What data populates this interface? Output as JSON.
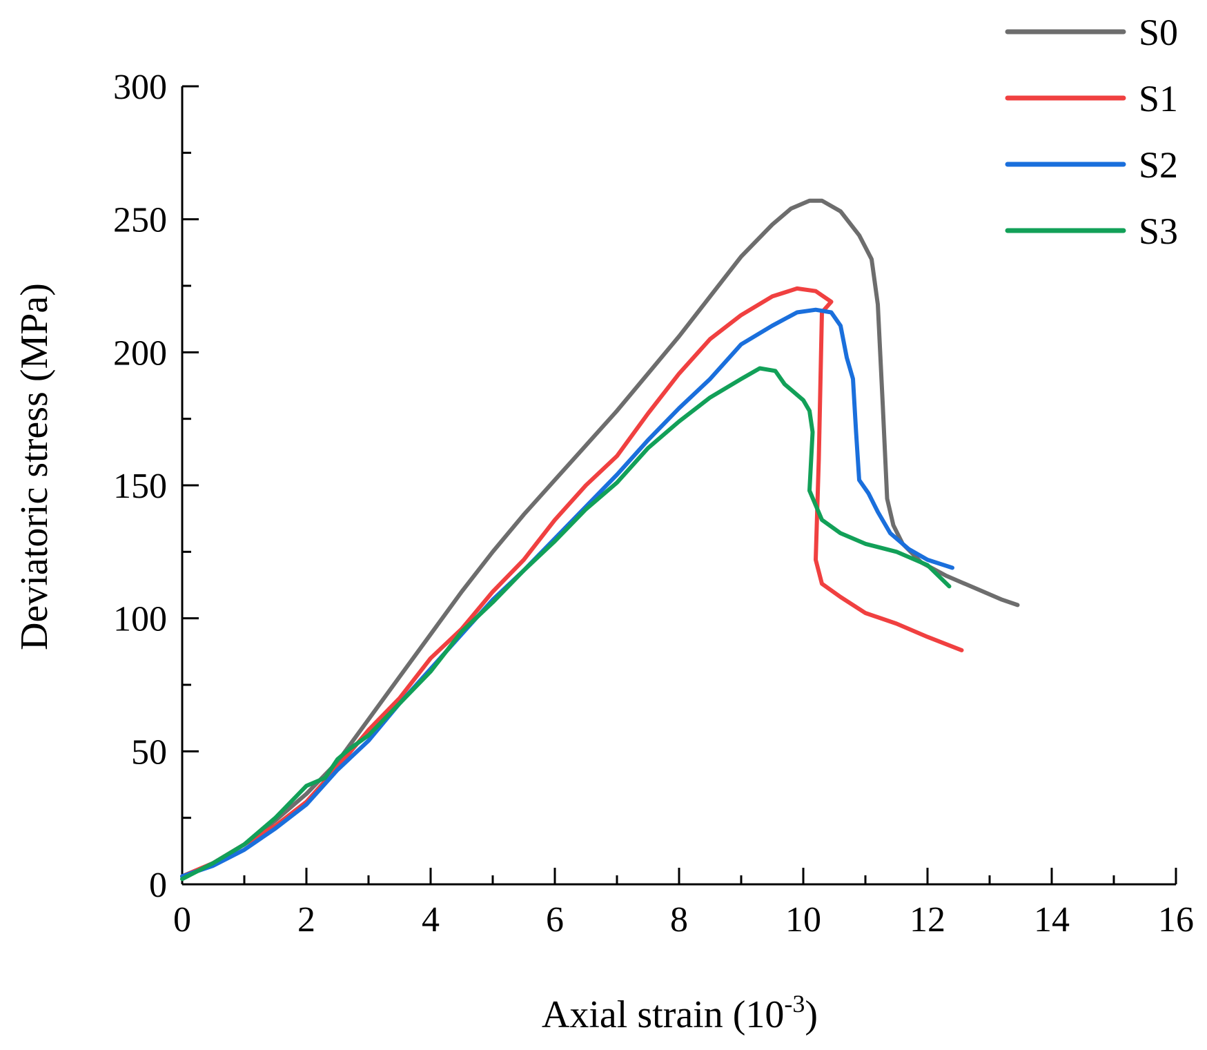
{
  "chart_data": {
    "type": "line",
    "title": "",
    "xlabel": "Axial strain (10",
    "xlabel_sup": "-3",
    "xlabel_suffix": ")",
    "ylabel": "Deviatoric stress (MPa)",
    "xlim": [
      0,
      16
    ],
    "ylim": [
      0,
      300
    ],
    "x_ticks": [
      0,
      2,
      4,
      6,
      8,
      10,
      12,
      14,
      16
    ],
    "y_ticks": [
      0,
      50,
      100,
      150,
      200,
      250,
      300
    ],
    "legend_position": "top-right",
    "series": [
      {
        "name": "S0",
        "color": "#6d6d6d",
        "points": [
          [
            0,
            3
          ],
          [
            0.5,
            8
          ],
          [
            1,
            15
          ],
          [
            1.5,
            24
          ],
          [
            2,
            34
          ],
          [
            2.5,
            46
          ],
          [
            3,
            62
          ],
          [
            3.5,
            78
          ],
          [
            4,
            94
          ],
          [
            4.5,
            110
          ],
          [
            5,
            125
          ],
          [
            5.5,
            139
          ],
          [
            6,
            152
          ],
          [
            6.5,
            165
          ],
          [
            7,
            178
          ],
          [
            7.5,
            192
          ],
          [
            8,
            206
          ],
          [
            8.5,
            221
          ],
          [
            9,
            236
          ],
          [
            9.5,
            248
          ],
          [
            9.8,
            254
          ],
          [
            10.1,
            257
          ],
          [
            10.3,
            257
          ],
          [
            10.6,
            253
          ],
          [
            10.9,
            244
          ],
          [
            11.1,
            235
          ],
          [
            11.2,
            218
          ],
          [
            11.28,
            180
          ],
          [
            11.35,
            145
          ],
          [
            11.45,
            135
          ],
          [
            11.6,
            128
          ],
          [
            11.9,
            121
          ],
          [
            12.3,
            116
          ],
          [
            12.8,
            111
          ],
          [
            13.2,
            107
          ],
          [
            13.45,
            105
          ]
        ]
      },
      {
        "name": "S1",
        "color": "#f04040",
        "points": [
          [
            0,
            3
          ],
          [
            0.5,
            8
          ],
          [
            1,
            15
          ],
          [
            1.5,
            22
          ],
          [
            2,
            31
          ],
          [
            2.5,
            44
          ],
          [
            3,
            58
          ],
          [
            3.5,
            70
          ],
          [
            4,
            85
          ],
          [
            4.5,
            96
          ],
          [
            5,
            110
          ],
          [
            5.5,
            122
          ],
          [
            6,
            137
          ],
          [
            6.5,
            150
          ],
          [
            7,
            161
          ],
          [
            7.5,
            177
          ],
          [
            8,
            192
          ],
          [
            8.5,
            205
          ],
          [
            9,
            214
          ],
          [
            9.5,
            221
          ],
          [
            9.9,
            224
          ],
          [
            10.2,
            223
          ],
          [
            10.45,
            219
          ],
          [
            10.3,
            215
          ],
          [
            10.25,
            160
          ],
          [
            10.2,
            122
          ],
          [
            10.3,
            113
          ],
          [
            10.6,
            108
          ],
          [
            11,
            102
          ],
          [
            11.5,
            98
          ],
          [
            12,
            93
          ],
          [
            12.55,
            88
          ]
        ]
      },
      {
        "name": "S2",
        "color": "#1a6fdc",
        "points": [
          [
            0,
            3
          ],
          [
            0.5,
            7
          ],
          [
            1,
            13
          ],
          [
            1.5,
            21
          ],
          [
            2,
            30
          ],
          [
            2.5,
            43
          ],
          [
            3,
            54
          ],
          [
            3.5,
            68
          ],
          [
            4,
            81
          ],
          [
            4.5,
            94
          ],
          [
            5,
            107
          ],
          [
            5.5,
            118
          ],
          [
            6,
            130
          ],
          [
            6.5,
            142
          ],
          [
            7,
            154
          ],
          [
            7.5,
            167
          ],
          [
            8,
            179
          ],
          [
            8.5,
            190
          ],
          [
            9,
            203
          ],
          [
            9.5,
            210
          ],
          [
            9.9,
            215
          ],
          [
            10.2,
            216
          ],
          [
            10.45,
            215
          ],
          [
            10.6,
            210
          ],
          [
            10.7,
            198
          ],
          [
            10.8,
            190
          ],
          [
            10.85,
            170
          ],
          [
            10.9,
            152
          ],
          [
            11.05,
            147
          ],
          [
            11.2,
            140
          ],
          [
            11.4,
            132
          ],
          [
            11.7,
            126
          ],
          [
            12,
            122
          ],
          [
            12.4,
            119
          ]
        ]
      },
      {
        "name": "S3",
        "color": "#12a058",
        "points": [
          [
            0,
            2
          ],
          [
            0.5,
            8
          ],
          [
            1,
            15
          ],
          [
            1.5,
            25
          ],
          [
            2,
            37
          ],
          [
            2.3,
            40
          ],
          [
            2.5,
            47
          ],
          [
            2.7,
            51
          ],
          [
            3,
            56
          ],
          [
            3.5,
            68
          ],
          [
            4,
            80
          ],
          [
            4.5,
            95
          ],
          [
            5,
            106
          ],
          [
            5.5,
            118
          ],
          [
            6,
            129
          ],
          [
            6.5,
            141
          ],
          [
            7,
            151
          ],
          [
            7.5,
            164
          ],
          [
            8,
            174
          ],
          [
            8.5,
            183
          ],
          [
            9,
            190
          ],
          [
            9.3,
            194
          ],
          [
            9.55,
            193
          ],
          [
            9.7,
            188
          ],
          [
            10,
            182
          ],
          [
            10.1,
            178
          ],
          [
            10.15,
            170
          ],
          [
            10.1,
            148
          ],
          [
            10.3,
            137
          ],
          [
            10.6,
            132
          ],
          [
            11,
            128
          ],
          [
            11.5,
            125
          ],
          [
            12,
            120
          ],
          [
            12.35,
            112
          ]
        ]
      }
    ]
  }
}
